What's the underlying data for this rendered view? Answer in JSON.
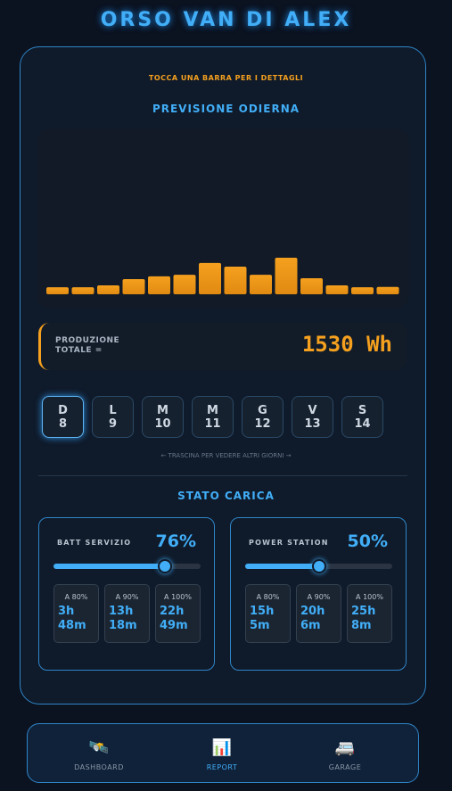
{
  "header": {
    "title": "ORSO VAN DI ALEX"
  },
  "chart_data": {
    "type": "bar",
    "subtitle": "TOCCA UNA BARRA PER I DETTAGLI",
    "title": "PREVISIONE ODIERNA",
    "values": [
      47,
      47,
      59,
      101,
      119,
      130,
      208,
      184,
      130,
      243,
      107,
      59,
      47,
      49
    ],
    "color": "#f5a01e"
  },
  "total": {
    "label": "PRODUZIONE TOTALE =",
    "value": 1530,
    "value_label": "1530 Wh"
  },
  "days": [
    {
      "letter": "D",
      "number": 8
    },
    {
      "letter": "L",
      "number": 9
    },
    {
      "letter": "M",
      "number": 10
    },
    {
      "letter": "M",
      "number": 11
    },
    {
      "letter": "G",
      "number": 12
    },
    {
      "letter": "V",
      "number": 13
    },
    {
      "letter": "S",
      "number": 14
    }
  ],
  "selected_day": 0,
  "hint": "← TRASCINA PER VEDERE ALTRI GIORNI →",
  "charge": {
    "title": "STATO CARICA",
    "batteries": [
      {
        "name": "BATT SERVIZIO",
        "percent": 76,
        "percent_label": "76%",
        "times": [
          {
            "label": "A 80%",
            "value": "3h 48m"
          },
          {
            "label": "A 90%",
            "value": "13h 18m"
          },
          {
            "label": "A 100%",
            "value": "22h 49m"
          }
        ]
      },
      {
        "name": "POWER STATION",
        "percent": 50,
        "percent_label": "50%",
        "times": [
          {
            "label": "A 80%",
            "value": "15h 5m"
          },
          {
            "label": "A 90%",
            "value": "20h 6m"
          },
          {
            "label": "A 100%",
            "value": "25h 8m"
          }
        ]
      }
    ]
  },
  "nav": [
    {
      "icon": "🛰️",
      "label": "DASHBOARD"
    },
    {
      "icon": "📊",
      "label": "REPORT"
    },
    {
      "icon": "🚐",
      "label": "GARAGE"
    }
  ],
  "active_nav": 1
}
